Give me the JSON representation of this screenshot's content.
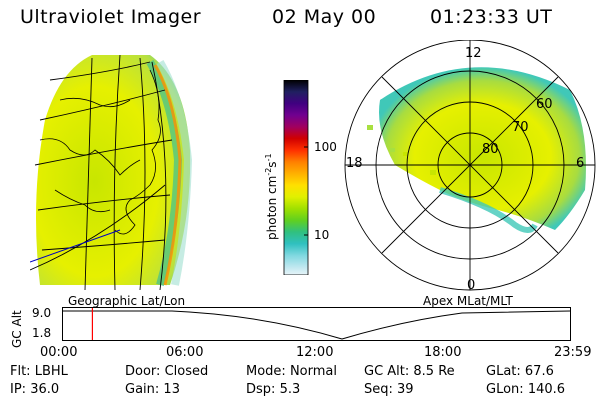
{
  "header": {
    "instrument": "Ultraviolet Imager",
    "date": "02 May 00",
    "time": "01:23:33 UT"
  },
  "colorbar": {
    "unit_label": "photon cm",
    "unit_exp1": "-2",
    "unit_mid": "s",
    "unit_exp2": "-1",
    "ticks": [
      "100",
      "10"
    ],
    "colors": [
      "#000000",
      "#202060",
      "#400080",
      "#700090",
      "#a00060",
      "#d00000",
      "#ff3000",
      "#ff8000",
      "#ffb000",
      "#ffe000",
      "#e0f000",
      "#a0e000",
      "#60d020",
      "#30c080",
      "#30c0c0",
      "#80d8e0",
      "#c0e8f0",
      "#e8f4f8"
    ]
  },
  "left_panel": {
    "caption": "Geographic Lat/Lon"
  },
  "polar_panel": {
    "caption": "Apex MLat/MLT",
    "mlt_labels": {
      "top": "12",
      "left": "18",
      "right": "6",
      "bottom": "0"
    },
    "lat_labels": [
      "60",
      "70",
      "80"
    ]
  },
  "timeline": {
    "ylabel": "GC Alt",
    "y_ticks": [
      "9.0",
      "1.8"
    ],
    "x_ticks": [
      "00:00",
      "06:00",
      "12:00",
      "18:00",
      "23:59"
    ],
    "current_fraction": 0.058,
    "marker_color": "#ff0000"
  },
  "status": {
    "row1": [
      {
        "label": "Flt:",
        "value": "LBHL"
      },
      {
        "label": "Door:",
        "value": "Closed"
      },
      {
        "label": "Mode:",
        "value": "Normal"
      },
      {
        "label": "GC Alt:",
        "value": "8.5 Re"
      },
      {
        "label": "GLat:",
        "value": "67.6"
      }
    ],
    "row2": [
      {
        "label": "IP:",
        "value": "36.0"
      },
      {
        "label": "Gain:",
        "value": "13"
      },
      {
        "label": "Dsp:",
        "value": "5.3"
      },
      {
        "label": "Seq:",
        "value": "39"
      },
      {
        "label": "GLon:",
        "value": "140.6"
      }
    ]
  }
}
